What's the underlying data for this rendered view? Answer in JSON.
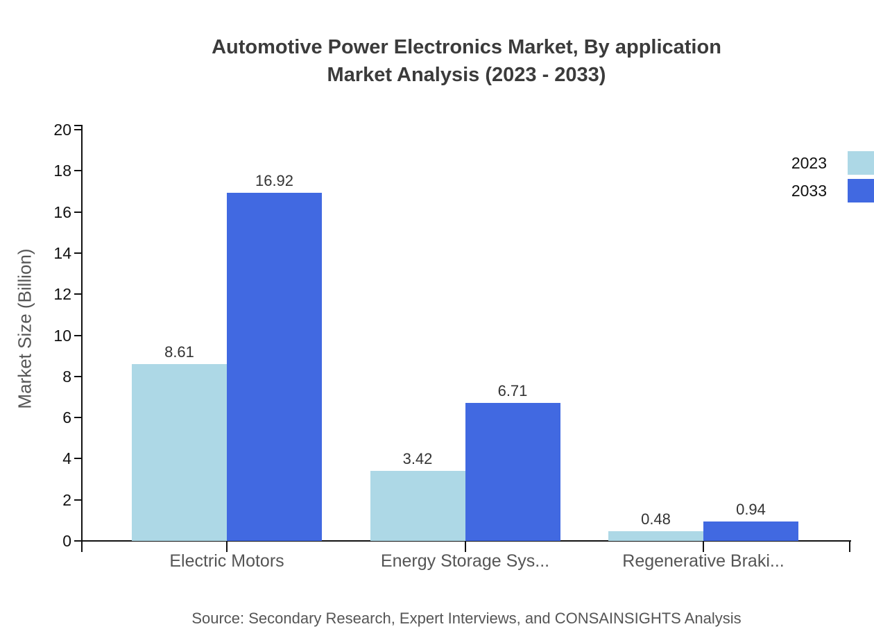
{
  "title": {
    "line1": "Automotive Power Electronics Market, By application",
    "line2": "Market Analysis (2023 - 2033)"
  },
  "chart_data": {
    "type": "bar",
    "categories": [
      "Electric Motors",
      "Energy Storage Sys...",
      "Regenerative Braki..."
    ],
    "series": [
      {
        "name": "2023",
        "color": "#ADD8E6",
        "values": [
          8.61,
          3.42,
          0.48
        ]
      },
      {
        "name": "2033",
        "color": "#4169E1",
        "values": [
          16.92,
          6.71,
          0.94
        ]
      }
    ],
    "ylabel": "Market Size (Billion)",
    "xlabel": "",
    "ylim": [
      0,
      20
    ],
    "yticks": [
      0,
      2,
      4,
      6,
      8,
      10,
      12,
      14,
      16,
      18,
      20
    ],
    "grid": false,
    "legend_position": "top-right",
    "value_label_format": "2dp"
  },
  "footer": {
    "source": "Source: Secondary Research, Expert Interviews, and CONSAINSIGHTS Analysis"
  },
  "colors": {
    "background": "#ffffff",
    "series_2023": "#ADD8E6",
    "series_2033": "#4169E1",
    "axis": "#111111",
    "title_text": "#3b3b3b",
    "tick_label_text": "#111111",
    "category_label_text": "#555555",
    "value_label_text": "#333333",
    "axis_title_text": "#555555",
    "source_text": "#555555",
    "legend_text": "#111111"
  }
}
